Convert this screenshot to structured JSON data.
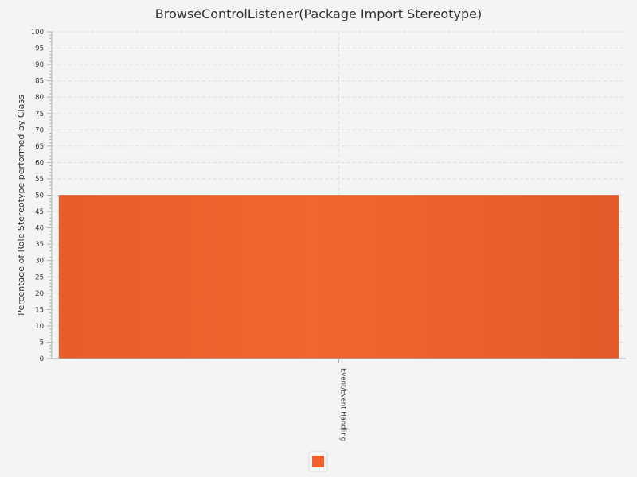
{
  "colors": {
    "background": "#f4f4f4",
    "bar": "#f0612d",
    "bar_edge": "#e2582a",
    "grid": "#dddddd",
    "axis": "#b0b0b0"
  },
  "chart_data": {
    "type": "bar",
    "title": "BrowseControlListener(Package Import Stereotype)",
    "xlabel": "",
    "ylabel": "Percentage of Role Stereotype performed by Class",
    "categories": [
      "Event/Event Handling"
    ],
    "series": [
      {
        "values": [
          50
        ],
        "color": "#f0612d"
      }
    ],
    "ylim": [
      0,
      100
    ],
    "y_major_step": 5,
    "y_minor_step": 1,
    "grid": true,
    "legend": {
      "position": "bottom",
      "entries": [
        ""
      ]
    }
  }
}
